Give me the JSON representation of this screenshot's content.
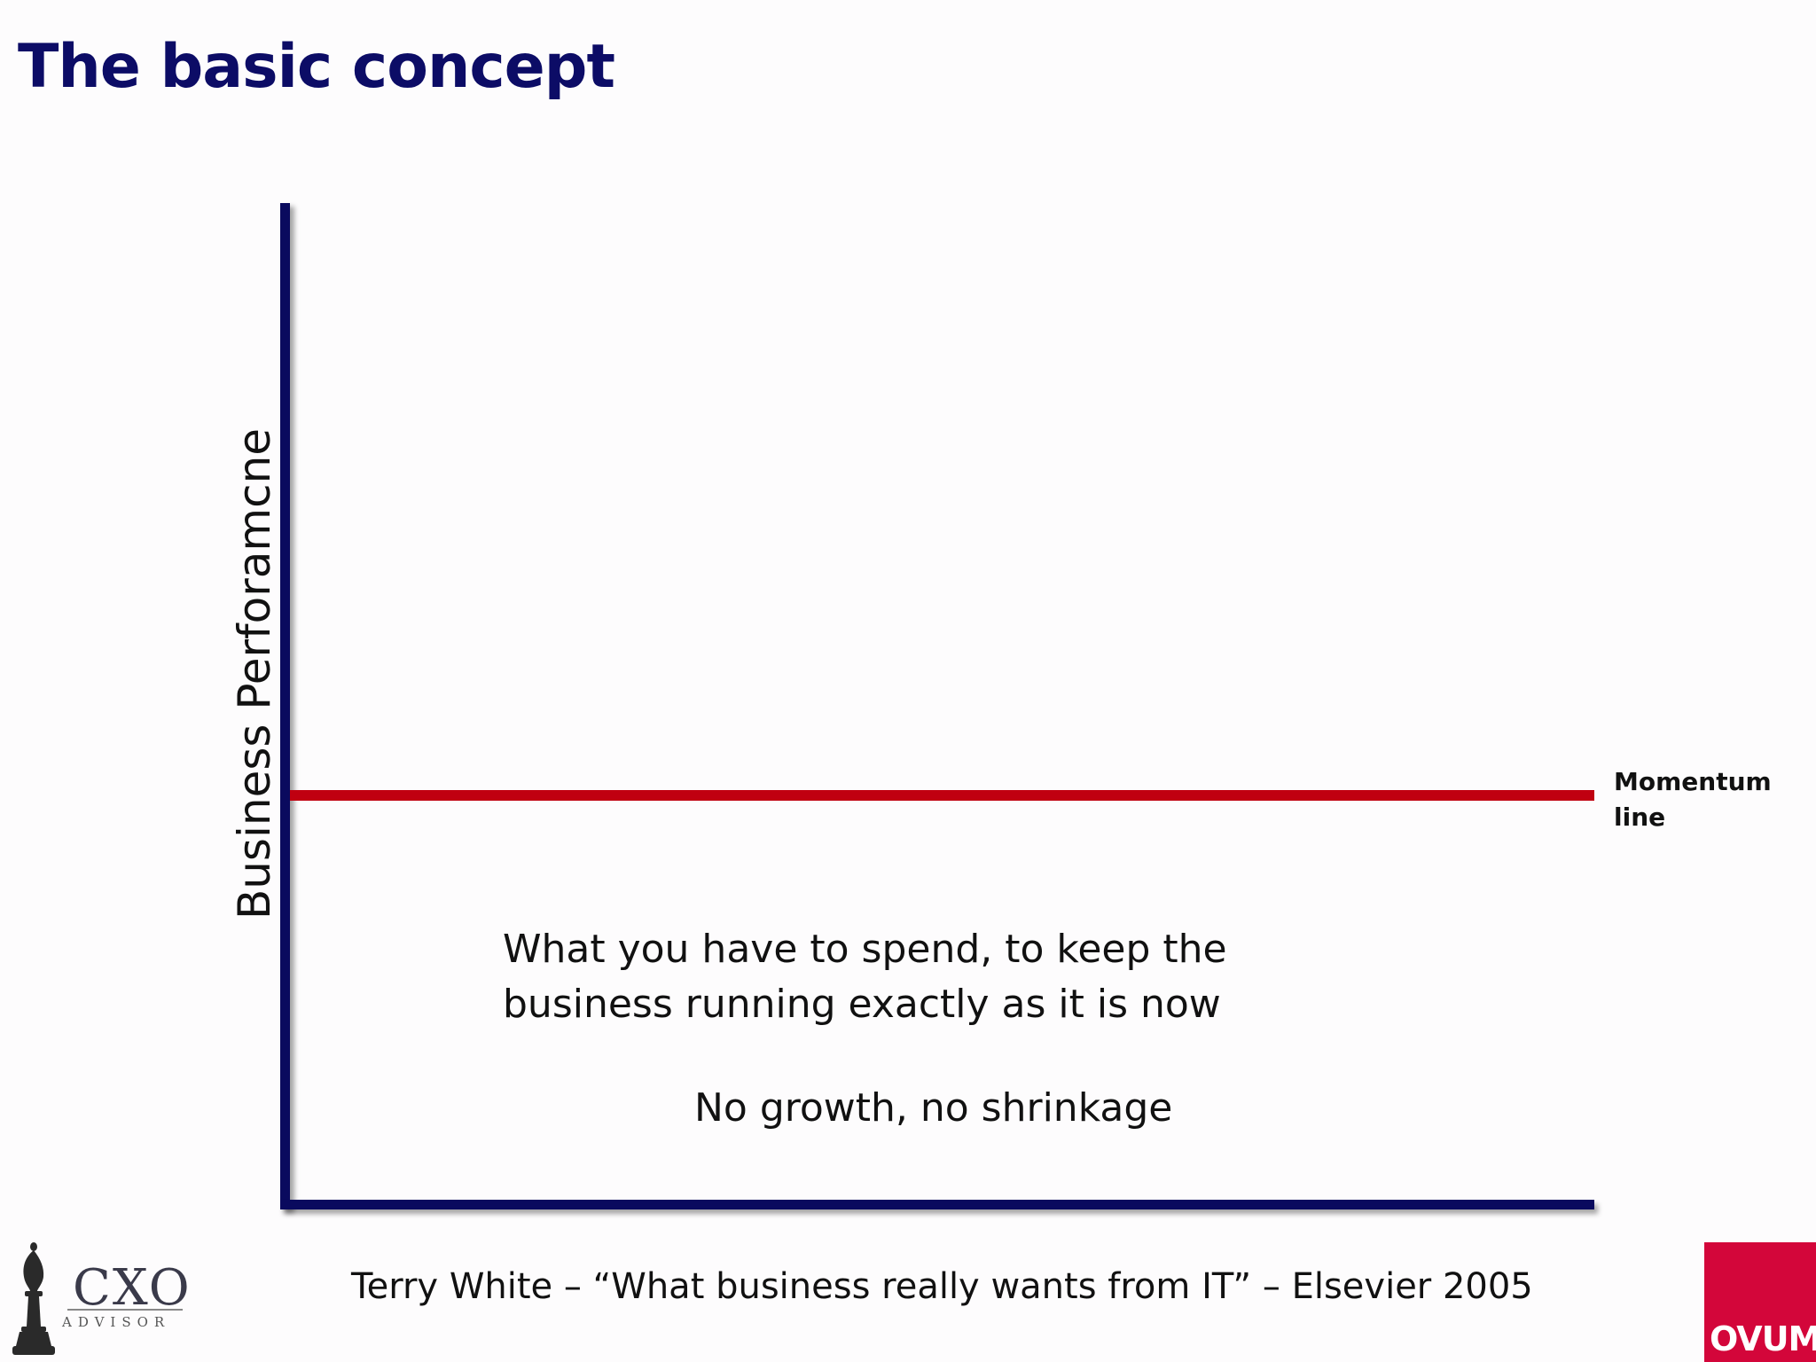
{
  "slide": {
    "title": "The basic concept"
  },
  "diagram": {
    "y_axis_label": "Business Perforamcne",
    "momentum_label_line1": "Momentum",
    "momentum_label_line2": "line",
    "body_line1": "What you have to spend, to keep the",
    "body_line2": "business running exactly as it is now",
    "subtext": "No growth, no shrinkage",
    "colors": {
      "axis": "#0a0a5e",
      "momentum_line": "#c00010",
      "title": "#0c0c66"
    }
  },
  "footer": {
    "citation": "Terry White – “What business really wants from IT” – Elsevier 2005",
    "cxo_logo_text": "CXO",
    "cxo_logo_subtext": "ADVISOR",
    "ovum_logo_text": "OVUM"
  }
}
